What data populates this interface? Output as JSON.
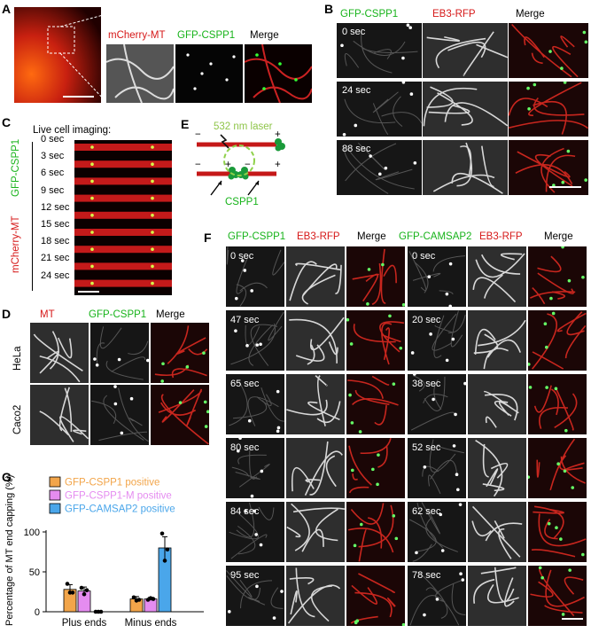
{
  "panels": {
    "A": {
      "label": "A",
      "ch1": "mCherry-MT",
      "ch2": "GFP-CSPP1",
      "ch3": "Merge"
    },
    "B": {
      "label": "B",
      "ch1": "GFP-CSPP1",
      "ch2": "EB3-RFP",
      "ch3": "Merge",
      "times": [
        "0 sec",
        "24 sec",
        "88 sec"
      ]
    },
    "C": {
      "label": "C",
      "title": "Live cell imaging:",
      "ylabel_green": "GFP-CSPP1",
      "ylabel_red": "mCherry-MT",
      "times": [
        "0 sec",
        "3 sec",
        "6 sec",
        "9 sec",
        "12 sec",
        "15 sec",
        "18 sec",
        "21 sec",
        "24 sec"
      ]
    },
    "D": {
      "label": "D",
      "ch1": "MT",
      "ch2": "GFP-CSPP1",
      "ch3": "Merge",
      "rows": [
        "HeLa",
        "Caco2"
      ]
    },
    "E": {
      "label": "E",
      "laser": "532 nm laser",
      "protein": "CSPP1",
      "minus": "−",
      "plus": "+"
    },
    "F": {
      "label": "F",
      "left": {
        "ch1": "GFP-CSPP1",
        "ch2": "EB3-RFP",
        "ch3": "Merge",
        "times": [
          "0 sec",
          "47 sec",
          "65 sec",
          "80 sec",
          "84 sec",
          "95 sec"
        ]
      },
      "right": {
        "ch1": "GFP-CAMSAP2",
        "ch2": "EB3-RFP",
        "ch3": "Merge",
        "times": [
          "0 sec",
          "20 sec",
          "38 sec",
          "52 sec",
          "62 sec",
          "78 sec"
        ]
      }
    },
    "G": {
      "label": "G"
    }
  },
  "chart_data": {
    "type": "bar",
    "ylabel": "Percentage of MT end capping (%)",
    "ylim": [
      0,
      100
    ],
    "yticks": [
      0,
      50,
      100
    ],
    "categories": [
      "Plus ends",
      "Minus ends"
    ],
    "series": [
      {
        "name": "GFP-CSPP1 positive",
        "color": "#f2a54a",
        "values": [
          28,
          16
        ],
        "err": [
          6,
          3
        ],
        "points": [
          [
            35,
            24,
            24
          ],
          [
            18,
            14,
            15
          ]
        ]
      },
      {
        "name": "GFP-CSPP1-M positive",
        "color": "#e58cf0",
        "values": [
          26,
          16
        ],
        "err": [
          5,
          2
        ],
        "points": [
          [
            30,
            22,
            27
          ],
          [
            15,
            17,
            16
          ]
        ]
      },
      {
        "name": "GFP-CAMSAP2 positive",
        "color": "#4aa6ea",
        "values": [
          0,
          80
        ],
        "err": [
          0,
          14
        ],
        "points": [
          [
            0,
            0,
            0
          ],
          [
            98,
            64,
            78
          ]
        ]
      }
    ]
  }
}
